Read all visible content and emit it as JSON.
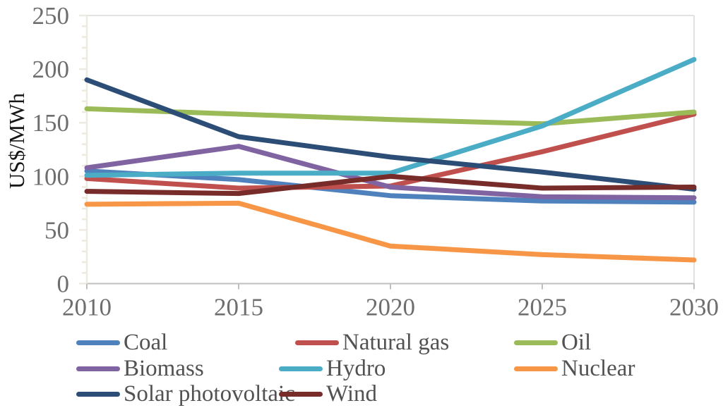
{
  "chart_data": {
    "type": "line",
    "title": "",
    "xlabel": "",
    "ylabel": "US$/MWh",
    "x": [
      "2010",
      "2015",
      "2020",
      "2025",
      "2030"
    ],
    "ylim": [
      0,
      250
    ],
    "yticks": [
      0,
      50,
      100,
      150,
      200,
      250
    ],
    "y_minor_tick_step": 10,
    "grid": "plot-border-only",
    "legend_position": "bottom",
    "series": [
      {
        "name": "Coal",
        "color": "#4F81BD",
        "values": [
          105,
          97,
          82,
          77,
          76
        ]
      },
      {
        "name": "Natural gas",
        "color": "#C0504D",
        "values": [
          98,
          89,
          91,
          123,
          158
        ]
      },
      {
        "name": "Oil",
        "color": "#9BBB59",
        "values": [
          163,
          158,
          153,
          149,
          160
        ]
      },
      {
        "name": "Biomass",
        "color": "#8064A2",
        "values": [
          108,
          128,
          90,
          81,
          80
        ]
      },
      {
        "name": "Hydro",
        "color": "#4BACC6",
        "values": [
          101,
          103,
          103,
          147,
          209
        ]
      },
      {
        "name": "Nuclear",
        "color": "#F79646",
        "values": [
          74,
          75,
          35,
          27,
          22
        ]
      },
      {
        "name": "Solar photovoltaic",
        "color": "#2C4D75",
        "values": [
          190,
          137,
          118,
          104,
          88
        ]
      },
      {
        "name": "Wind",
        "color": "#772C2A",
        "values": [
          86,
          84,
          100,
          89,
          90
        ]
      }
    ],
    "colors": {
      "left_axis": "#EDEAE0",
      "bottom_axis": "#BFBFBF",
      "plot_border": "#D9D9D9",
      "tick_label": "#6E6E6E",
      "legend_text": "#525252",
      "axis_title_text": "#161616"
    }
  }
}
